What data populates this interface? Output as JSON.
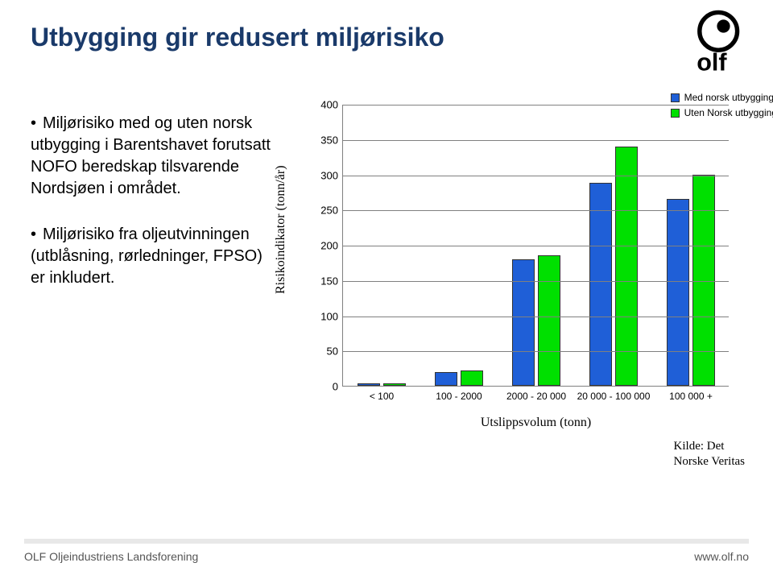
{
  "title": "Utbygging gir redusert miljørisiko",
  "body": {
    "bullet1": "Miljørisiko med og uten norsk utbygging i Barentshavet forutsatt NOFO beredskap tilsvarende Nordsjøen i området.",
    "bullet2": "Miljørisiko fra oljeutvinningen (utblåsning, rørledninger, FPSO) er inkludert."
  },
  "chart": {
    "type": "bar",
    "ylabel": "Risikoindikator (tonn/år)",
    "xlabel": "Utslippsvolum (tonn)",
    "ylim": [
      0,
      400
    ],
    "ytick_step": 50,
    "yticks": [
      0,
      50,
      100,
      150,
      200,
      250,
      300,
      350,
      400
    ],
    "categories": [
      "< 100",
      "100 - 2000",
      "2000 -  20 000",
      "20 000 - 100 000",
      "100 000 +"
    ],
    "series": [
      {
        "name": "Med norsk utbygging",
        "color": "#1f5fd7",
        "values": [
          3,
          20,
          180,
          288,
          265
        ]
      },
      {
        "name": "Uten Norsk utbygging",
        "color": "#00e000",
        "values": [
          3,
          22,
          185,
          340,
          300
        ]
      }
    ],
    "grid_color": "#808080",
    "background_color": "#ffffff",
    "bar_border": "#333333",
    "title_fontsize": 32,
    "title_color": "#1a3a6a",
    "axis_fontfamily": "Times New Roman",
    "axis_fontsize": 16,
    "tick_fontsize": 13,
    "legend_fontsize": 12
  },
  "source": {
    "line1": "Kilde: Det",
    "line2": "Norske Veritas"
  },
  "footer": {
    "left": "OLF Oljeindustriens Landsforening",
    "right": "www.olf.no"
  },
  "logo": {
    "text": "olf",
    "colors": {
      "ring": "#000000",
      "dot": "#000000"
    }
  }
}
